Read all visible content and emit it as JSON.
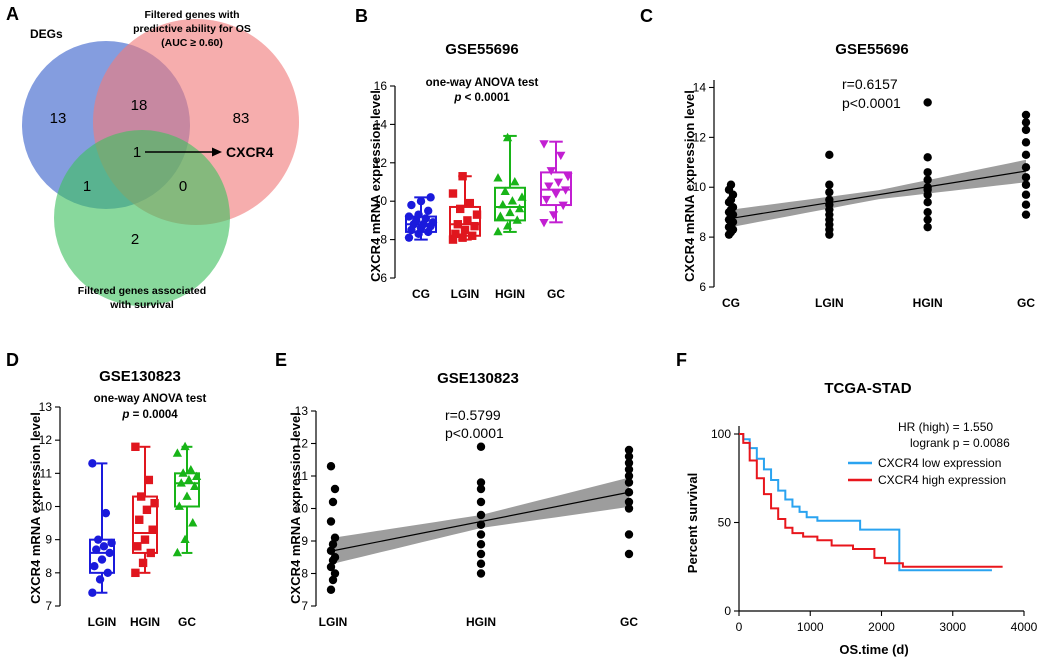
{
  "panels": {
    "A": "A",
    "B": "B",
    "C": "C",
    "D": "D",
    "E": "E",
    "F": "F"
  },
  "venn": {
    "label_degs": "DEGs",
    "label_os_line1": "Filtered genes with",
    "label_os_line2": "predictive ability for OS",
    "label_os_line3": "(AUC ≥ 0.60)",
    "label_surv_line1": "Filtered genes associated",
    "label_surv_line2": "with survival",
    "n_degs_only": "13",
    "n_degs_os": "18",
    "n_os_only": "83",
    "n_all": "1",
    "n_degs_surv": "1",
    "n_os_surv": "0",
    "n_surv_only": "2",
    "gene": "CXCR4",
    "colors": {
      "degs": "#4a6fd0",
      "os": "#f07a7a",
      "surv": "#3fc060"
    }
  },
  "chart_data": [
    {
      "id": "B",
      "type": "box",
      "title": "GSE55696",
      "subtitle": "one-way ANOVA test",
      "pvalue_prefix": "p",
      "pvalue_text": "< 0.0001",
      "ylabel": "CXCR4 mRNA expression level",
      "categories": [
        "CG",
        "LGIN",
        "HGIN",
        "GC"
      ],
      "ylim": [
        6,
        16
      ],
      "yticks": [
        "6",
        "8",
        "10",
        "12",
        "14",
        "16"
      ],
      "colors": [
        "#1a1adc",
        "#e0161e",
        "#18b418",
        "#c21fd2"
      ],
      "markers": [
        "circle",
        "square",
        "triangle",
        "triangle-down"
      ],
      "boxes": [
        {
          "min": 8.0,
          "q1": 8.4,
          "median": 8.8,
          "q3": 9.2,
          "max": 10.2
        },
        {
          "min": 8.0,
          "q1": 8.2,
          "median": 8.8,
          "q3": 9.7,
          "max": 11.3
        },
        {
          "min": 8.4,
          "q1": 9.0,
          "median": 9.7,
          "q3": 10.7,
          "max": 13.4
        },
        {
          "min": 8.9,
          "q1": 9.8,
          "median": 10.6,
          "q3": 11.5,
          "max": 13.1
        }
      ],
      "points": [
        [
          8.1,
          8.3,
          8.4,
          8.5,
          8.6,
          8.7,
          8.8,
          8.8,
          8.9,
          9.0,
          9.1,
          9.2,
          9.3,
          9.5,
          9.8,
          10.0,
          10.2
        ],
        [
          8.0,
          8.1,
          8.2,
          8.3,
          8.5,
          8.7,
          8.8,
          9.0,
          9.3,
          9.6,
          9.9,
          10.4,
          11.3
        ],
        [
          8.4,
          8.7,
          9.0,
          9.2,
          9.4,
          9.6,
          9.8,
          10.0,
          10.2,
          10.5,
          11.0,
          11.2,
          13.3
        ],
        [
          8.9,
          9.3,
          9.8,
          10.1,
          10.4,
          10.6,
          10.8,
          11.0,
          11.3,
          11.6,
          12.4,
          13.0
        ]
      ]
    },
    {
      "id": "C",
      "type": "scatter",
      "title": "GSE55696",
      "stat_r": "r=0.6157",
      "stat_p": "p<0.0001",
      "ylabel": "CXCR4 mRNA expression level",
      "categories": [
        "CG",
        "LGIN",
        "HGIN",
        "GC"
      ],
      "ylim": [
        6,
        14.3
      ],
      "yticks": [
        "6",
        "8",
        "10",
        "12",
        "14"
      ],
      "fit": {
        "y_start": 8.75,
        "y_end": 10.65,
        "band_start": 0.35,
        "band_mid": 0.18,
        "band_end": 0.45
      },
      "points": [
        [
          8.1,
          8.2,
          8.3,
          8.4,
          8.5,
          8.6,
          8.7,
          8.8,
          8.9,
          9.0,
          9.1,
          9.2,
          9.4,
          9.5,
          9.7,
          9.9,
          10.1
        ],
        [
          8.1,
          8.3,
          8.5,
          8.7,
          8.9,
          9.1,
          9.3,
          9.5,
          9.8,
          10.1,
          11.3
        ],
        [
          8.4,
          8.7,
          9.0,
          9.4,
          9.7,
          9.9,
          10.0,
          10.3,
          10.6,
          11.2,
          13.4
        ],
        [
          8.9,
          9.3,
          9.7,
          10.1,
          10.4,
          10.8,
          11.3,
          11.8,
          12.3,
          12.6,
          12.9
        ]
      ]
    },
    {
      "id": "D",
      "type": "box",
      "title": "GSE130823",
      "subtitle": "one-way ANOVA test",
      "pvalue_prefix": "p",
      "pvalue_text": "= 0.0004",
      "ylabel": "CXCR4 mRNA expression level",
      "categories": [
        "LGIN",
        "HGIN",
        "GC"
      ],
      "ylim": [
        7,
        13
      ],
      "yticks": [
        "7",
        "8",
        "9",
        "10",
        "11",
        "12",
        "13"
      ],
      "colors": [
        "#1a1adc",
        "#e0161e",
        "#18b418"
      ],
      "markers": [
        "circle",
        "square",
        "triangle"
      ],
      "boxes": [
        {
          "min": 7.4,
          "q1": 8.0,
          "median": 8.6,
          "q3": 9.0,
          "max": 11.3
        },
        {
          "min": 8.0,
          "q1": 8.6,
          "median": 9.2,
          "q3": 10.3,
          "max": 11.8
        },
        {
          "min": 8.6,
          "q1": 10.0,
          "median": 10.7,
          "q3": 11.0,
          "max": 11.8
        }
      ],
      "points": [
        [
          7.4,
          7.8,
          8.0,
          8.2,
          8.4,
          8.6,
          8.7,
          8.8,
          8.9,
          9.0,
          9.8,
          11.3
        ],
        [
          8.0,
          8.3,
          8.6,
          8.8,
          9.0,
          9.3,
          9.6,
          9.9,
          10.1,
          10.3,
          10.8,
          11.8
        ],
        [
          8.6,
          9.0,
          9.5,
          10.0,
          10.3,
          10.6,
          10.7,
          10.8,
          10.9,
          11.0,
          11.1,
          11.6,
          11.8
        ]
      ]
    },
    {
      "id": "E",
      "type": "scatter",
      "title": "GSE130823",
      "stat_r": "r=0.5799",
      "stat_p": "p<0.0001",
      "ylabel": "CXCR4 mRNA expression level",
      "categories": [
        "LGIN",
        "HGIN",
        "GC"
      ],
      "ylim": [
        7,
        13
      ],
      "yticks": [
        "7",
        "8",
        "9",
        "10",
        "11",
        "12",
        "13"
      ],
      "fit": {
        "y_start": 8.7,
        "y_end": 10.5,
        "band_start": 0.4,
        "band_mid": 0.2,
        "band_end": 0.45
      },
      "points": [
        [
          7.5,
          7.8,
          8.0,
          8.2,
          8.4,
          8.5,
          8.7,
          8.9,
          9.1,
          9.6,
          10.2,
          10.6,
          11.3
        ],
        [
          8.0,
          8.3,
          8.6,
          8.9,
          9.2,
          9.5,
          9.8,
          10.2,
          10.6,
          10.8,
          11.9
        ],
        [
          8.6,
          9.2,
          10.0,
          10.2,
          10.5,
          10.8,
          11.0,
          11.2,
          11.4,
          11.6,
          11.8
        ]
      ]
    },
    {
      "id": "F",
      "type": "line",
      "title": "TCGA-STAD",
      "xlabel": "OS.time (d)",
      "ylabel": "Percent survival",
      "xlim": [
        0,
        4000
      ],
      "ylim": [
        0,
        100
      ],
      "xticks": [
        "0",
        "1000",
        "2000",
        "3000",
        "4000"
      ],
      "yticks": [
        "0",
        "50",
        "100"
      ],
      "hr_text": "HR (high) = 1.550",
      "logrank_text": "logrank  p = 0.0086",
      "series": [
        {
          "name": "CXCR4 low expression",
          "color": "#2aa3f0",
          "x": [
            0,
            60,
            150,
            250,
            350,
            450,
            550,
            650,
            750,
            850,
            950,
            1100,
            1700,
            2200,
            2250,
            3550
          ],
          "y": [
            100,
            97,
            92,
            86,
            80,
            74,
            68,
            63,
            59,
            56,
            53,
            51,
            46,
            46,
            23,
            23
          ]
        },
        {
          "name": "CXCR4 high expression",
          "color": "#e8161c",
          "x": [
            0,
            60,
            150,
            250,
            350,
            450,
            550,
            650,
            750,
            900,
            1100,
            1300,
            1600,
            1900,
            2050,
            2300,
            3700
          ],
          "y": [
            100,
            95,
            85,
            75,
            66,
            58,
            52,
            47,
            44,
            42,
            40,
            37,
            35,
            30,
            27,
            25,
            25
          ]
        }
      ]
    }
  ]
}
